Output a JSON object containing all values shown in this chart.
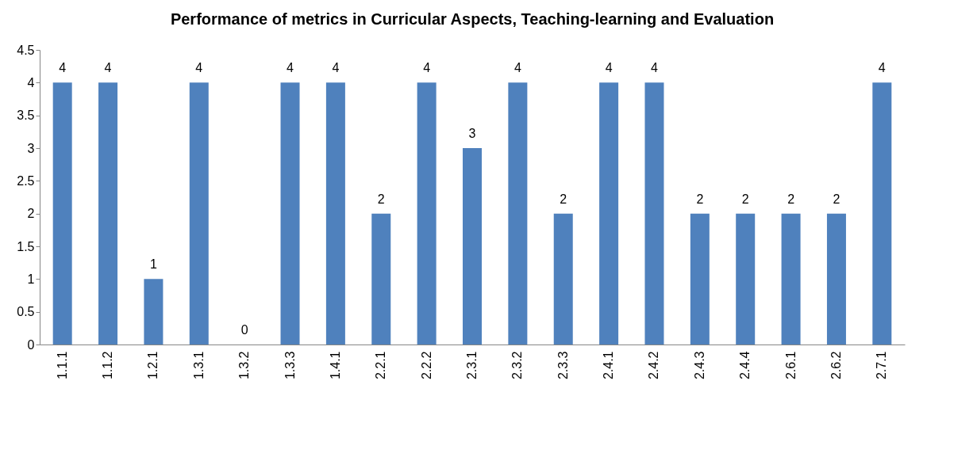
{
  "chart_data": {
    "type": "bar",
    "title": "Performance of metrics in Curricular Aspects, Teaching-learning and Evaluation",
    "categories": [
      "1.1.1",
      "1.1.2",
      "1.2.1",
      "1.3.1",
      "1.3.2",
      "1.3.3",
      "1.4.1",
      "2.2.1",
      "2.2.2",
      "2.3.1",
      "2.3.2",
      "2.3.3",
      "2.4.1",
      "2.4.2",
      "2.4.3",
      "2.4.4",
      "2.6.1",
      "2.6.2",
      "2.7.1"
    ],
    "values": [
      4,
      4,
      1,
      4,
      0,
      4,
      4,
      2,
      4,
      3,
      4,
      2,
      4,
      4,
      2,
      2,
      2,
      2,
      4
    ],
    "color": "#4f81bd",
    "ylim": [
      0,
      4.5
    ],
    "yticks": [
      0,
      0.5,
      1,
      1.5,
      2,
      2.5,
      3,
      3.5,
      4,
      4.5
    ],
    "grid": false,
    "data_labels": true
  }
}
